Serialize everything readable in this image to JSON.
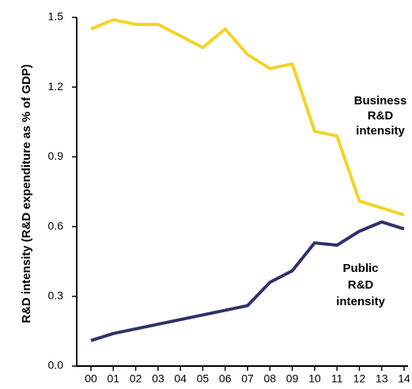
{
  "chart_data": {
    "type": "line",
    "y_label": "R&D intensity (R&D expenditure as % of GDP)",
    "categories": [
      "00",
      "01",
      "02",
      "03",
      "04",
      "05",
      "06",
      "07",
      "08",
      "09",
      "10",
      "11",
      "12",
      "13",
      "14"
    ],
    "series": [
      {
        "label": [
          "Business",
          "R&D",
          "intensity"
        ],
        "color": "#f5d327",
        "values": [
          1.45,
          1.49,
          1.47,
          1.47,
          1.42,
          1.37,
          1.45,
          1.34,
          1.28,
          1.3,
          1.01,
          0.99,
          0.71,
          0.68,
          0.65
        ]
      },
      {
        "label": [
          "Public",
          "R&D",
          "intensity"
        ],
        "color": "#2e3268",
        "values": [
          0.11,
          0.14,
          0.16,
          0.18,
          0.2,
          0.22,
          0.24,
          0.26,
          0.36,
          0.41,
          0.53,
          0.52,
          0.58,
          0.62,
          0.59
        ]
      }
    ],
    "ylim": [
      0,
      1.5
    ],
    "yticks": [
      {
        "value": 0,
        "label": "0.0"
      },
      0.3,
      0.6,
      0.9,
      1.2,
      1.5
    ]
  }
}
